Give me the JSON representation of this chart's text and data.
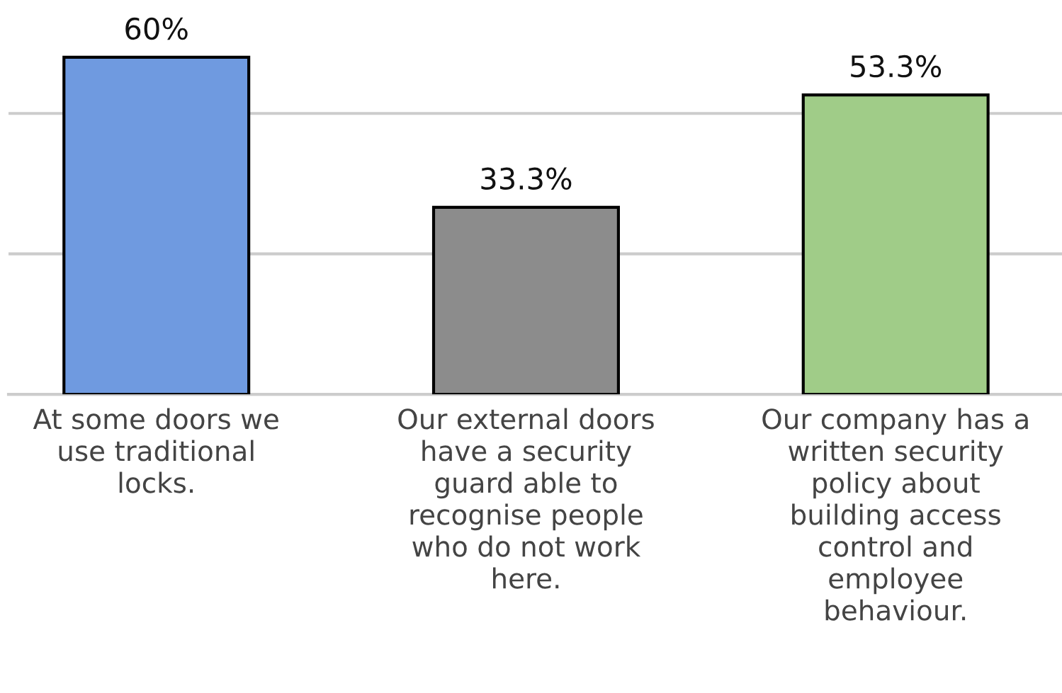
{
  "chart_data": {
    "type": "bar",
    "categories": [
      "At some doors we\nuse traditional\nlocks.",
      "Our external doors\nhave a security\nguard able to\nrecognise people\nwho do not work\nhere.",
      "Our company has a\nwritten security\npolicy about\nbuilding access\ncontrol and\nemployee\nbehaviour."
    ],
    "values": [
      60,
      33.3,
      53.3
    ],
    "colors": [
      "#6f9ae0",
      "#8c8c8c",
      "#a0cc88"
    ],
    "value_labels": [
      "60%",
      "33.3%",
      "53.3%"
    ],
    "ref_lines": [
      {
        "axis": "y",
        "value": 25,
        "color": "#cccccc"
      },
      {
        "axis": "y",
        "value": 50,
        "color": "#cccccc"
      }
    ],
    "tick_labels": "x"
  }
}
